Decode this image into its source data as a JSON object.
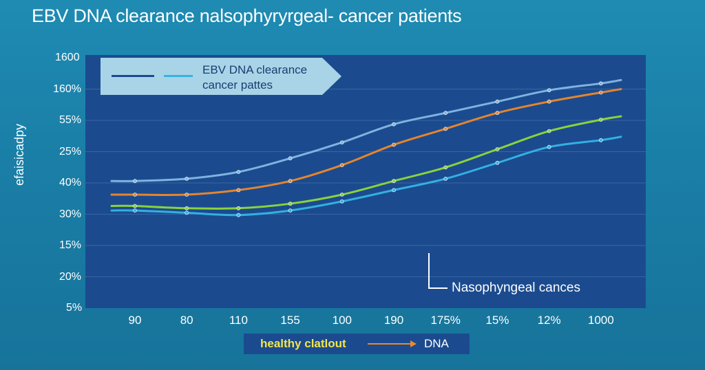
{
  "title": "EBV DNA clearance nalsophyryrgeal- cancer patients",
  "legend": {
    "line1": "EBV DNA clearance",
    "line2": "cancer pattes",
    "swatch_colors": [
      "#1d4a8c",
      "#36b3e0"
    ]
  },
  "annotation": "Nasophyngeal cances",
  "bottom": {
    "label1": "healthy clatlout",
    "label2": "DNA",
    "arrow_color": "#ea8a2a"
  },
  "colors": {
    "background": "#1f8bb3",
    "plot_panel": "#1b4b8e",
    "gridline": "#3a65a3"
  },
  "chart_data": {
    "type": "line",
    "title": "EBV DNA clearance nalsophyryrgeal- cancer patients",
    "xlabel": "",
    "ylabel": "efaisicadpy",
    "categories": [
      "90",
      "80",
      "110",
      "155",
      "100",
      "190",
      "175%",
      "15%",
      "12%",
      "1000"
    ],
    "y_ticks": [
      "1600",
      "160%",
      "55%",
      "25%",
      "40%",
      "30%",
      "15%",
      "20%",
      "5%"
    ],
    "grid": true,
    "legend_position": "top-left",
    "series": [
      {
        "color": "#7fb3e0",
        "values": [
          5.6,
          5.7,
          6.0,
          6.6,
          7.3,
          8.1,
          8.6,
          9.1,
          9.6,
          9.9
        ]
      },
      {
        "color": "#e5852d",
        "values": [
          5.0,
          5.0,
          5.2,
          5.6,
          6.3,
          7.2,
          7.9,
          8.6,
          9.1,
          9.5
        ]
      },
      {
        "color": "#8ad23c",
        "values": [
          4.5,
          4.4,
          4.4,
          4.6,
          5.0,
          5.6,
          6.2,
          7.0,
          7.8,
          8.3
        ]
      },
      {
        "color": "#33b0e2",
        "values": [
          4.3,
          4.2,
          4.1,
          4.3,
          4.7,
          5.2,
          5.7,
          6.4,
          7.1,
          7.4
        ]
      }
    ]
  }
}
